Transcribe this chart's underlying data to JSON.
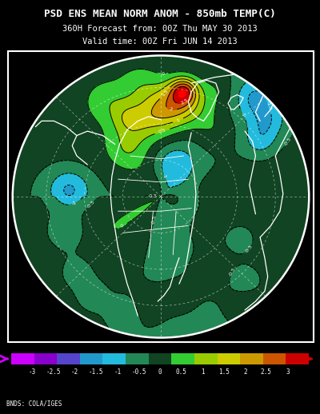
{
  "title_line1": "PSD ENS MEAN NORM ANOM - 850mb TEMP(C)",
  "title_line2": "360H Forecast from: 00Z Thu MAY 30 2013",
  "title_line3": "Valid time: 00Z Fri JUN 14 2013",
  "credit": "BNDS: COLA/IGES",
  "background_color": "#000000",
  "colorbar_levels": [
    -3,
    -2.5,
    -2,
    -1.5,
    -1,
    -0.5,
    0,
    0.5,
    1,
    1.5,
    2,
    2.5,
    3
  ],
  "colorbar_tick_labels": [
    "-3",
    "-2.5",
    "-2",
    "-1.5",
    "-1",
    "-0.5",
    "0",
    "0.5",
    "1",
    "1.5",
    "2",
    "2.5",
    "3"
  ],
  "colorbar_colors": [
    "#cc00ff",
    "#8800cc",
    "#5544cc",
    "#2299cc",
    "#22bbdd",
    "#228855",
    "#114422",
    "#33cc33",
    "#99cc00",
    "#cccc00",
    "#cc9900",
    "#cc5500",
    "#cc0000"
  ],
  "fig_width": 4.0,
  "fig_height": 5.18,
  "dpi": 100
}
